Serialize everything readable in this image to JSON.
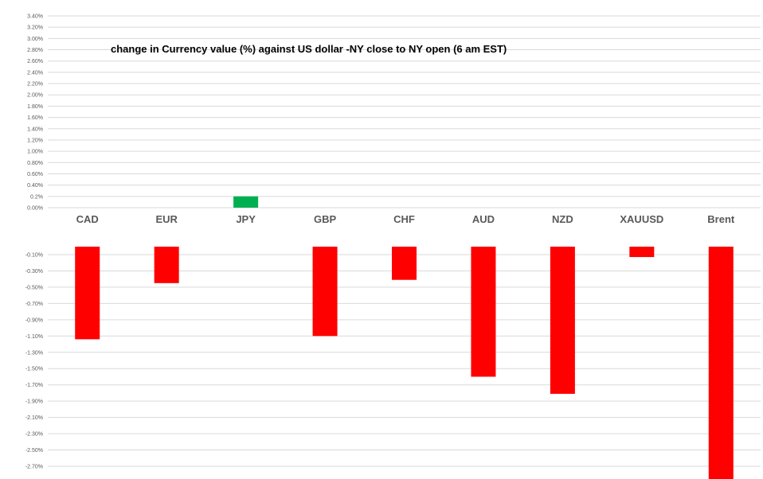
{
  "chart_data": {
    "type": "bar",
    "title": "change in Currency value (%)  against US dollar -NY close to NY open (6 am EST)",
    "categories": [
      "CAD",
      "EUR",
      "JPY",
      "GBP",
      "CHF",
      "AUD",
      "NZD",
      "XAUUSD",
      "Brent"
    ],
    "values": [
      -1.14,
      -0.45,
      0.2,
      -1.1,
      -0.41,
      -1.6,
      -1.81,
      -0.13,
      -2.86
    ],
    "upper_ticks": [
      "3.40%",
      "3.20%",
      "3.00%",
      "2.80%",
      "2.60%",
      "2.40%",
      "2.20%",
      "2.00%",
      "1.80%",
      "1.60%",
      "1.40%",
      "1.20%",
      "1.00%",
      "0.80%",
      "0.60%",
      "0.40%",
      "0.2%",
      "0.00%"
    ],
    "lower_ticks": [
      "-0.10%",
      "-0.30%",
      "-0.50%",
      "-0.70%",
      "-0.90%",
      "-1.10%",
      "-1.30%",
      "-1.50%",
      "-1.70%",
      "-1.90%",
      "-2.10%",
      "-2.30%",
      "-2.50%",
      "-2.70%"
    ],
    "ylim_upper": [
      0,
      3.4
    ],
    "ylim_lower": [
      -2.9,
      -0.1
    ],
    "grid": true,
    "legend": "none",
    "colors": {
      "positive": "#00b050",
      "negative": "#ff0000",
      "grid": "#d9d9d9",
      "text": "#595959"
    }
  }
}
